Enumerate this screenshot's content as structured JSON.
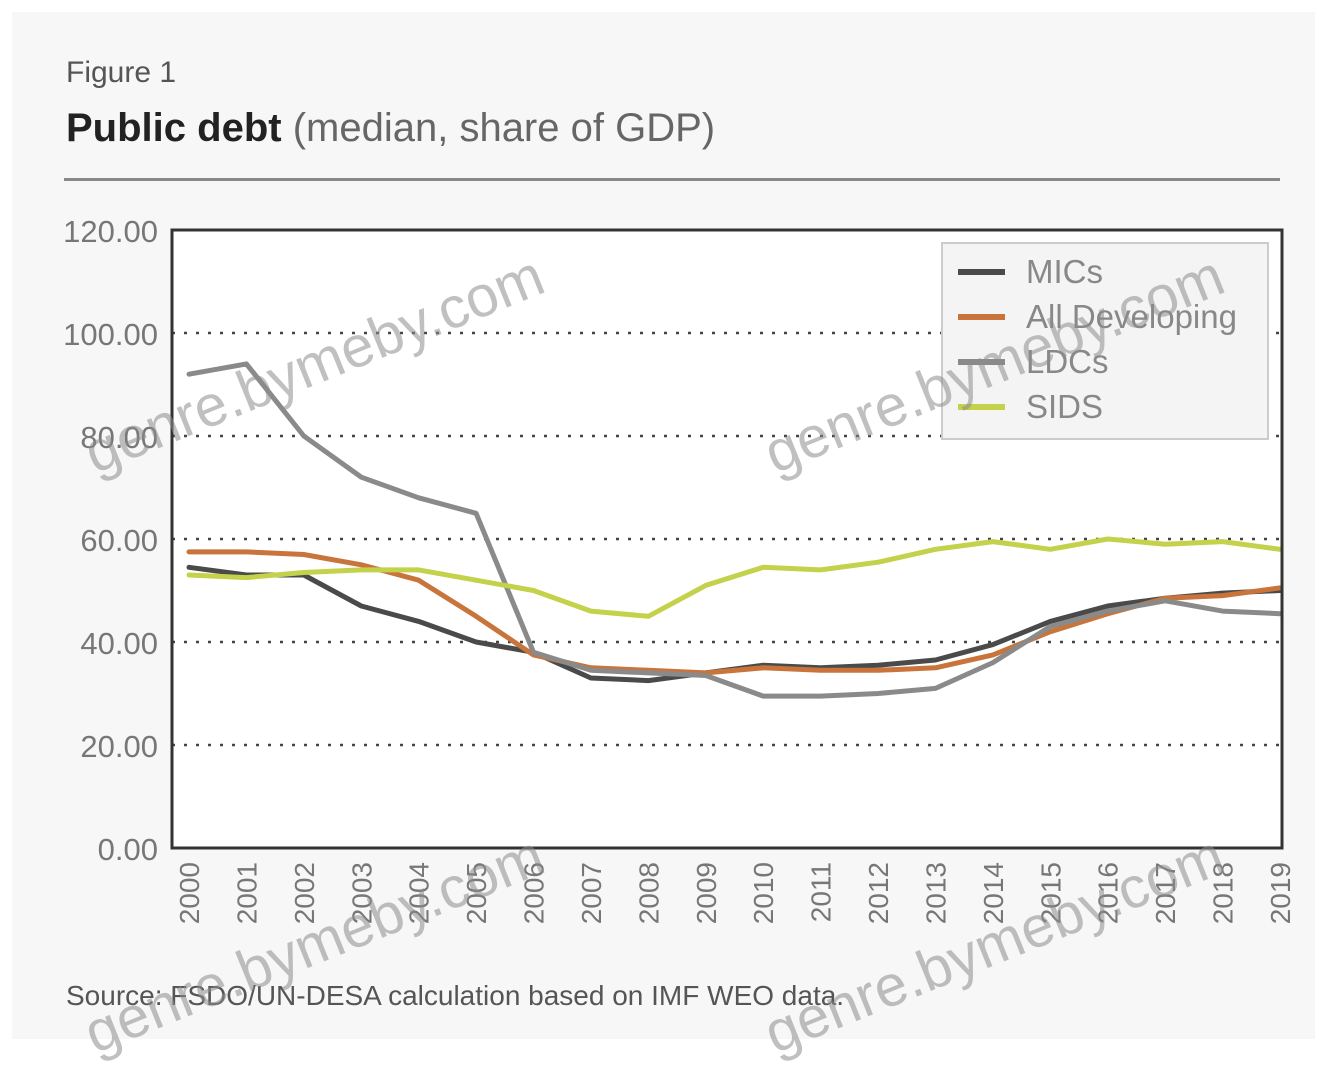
{
  "figure_label": "Figure 1",
  "title_main": "Public debt",
  "title_sub": "(median, share of GDP)",
  "source": "Source: FSDO/UN-DESA calculation based on IMF WEO data.",
  "watermark": "genre.bymeby.com",
  "chart_data": {
    "type": "line",
    "title": "Public debt (median, share of GDP)",
    "xlabel": "",
    "ylabel": "",
    "ylim": [
      0,
      120
    ],
    "yticks": [
      "0.00",
      "20.00",
      "40.00",
      "60.00",
      "80.00",
      "100.00",
      "120.00"
    ],
    "grid": "horizontal dotted",
    "legend_position": "top-right",
    "categories": [
      "2000",
      "2001",
      "2002",
      "2003",
      "2004",
      "2005",
      "2006",
      "2007",
      "2008",
      "2009",
      "2010",
      "2011",
      "2012",
      "2013",
      "2014",
      "2015",
      "2016",
      "2017",
      "2018",
      "2019"
    ],
    "series": [
      {
        "name": "MICs",
        "color": "#4a4a4a",
        "values": [
          54.5,
          53,
          53,
          47,
          44,
          40,
          38,
          33,
          32.5,
          34,
          35.5,
          35,
          35.5,
          36.5,
          39.5,
          44,
          47,
          48.5,
          49.5,
          50
        ]
      },
      {
        "name": "All Developing",
        "color": "#c8743a",
        "values": [
          57.5,
          57.5,
          57,
          55,
          52,
          45,
          37.5,
          35,
          34.5,
          34,
          35,
          34.5,
          34.5,
          35,
          37.5,
          42,
          45.5,
          48.5,
          49,
          50.5
        ]
      },
      {
        "name": "LDCs",
        "color": "#8a8a8a",
        "values": [
          92,
          94,
          80,
          72,
          68,
          65,
          38,
          34.5,
          34,
          33.5,
          29.5,
          29.5,
          30,
          31,
          36,
          43,
          46,
          48,
          46,
          45.5
        ]
      },
      {
        "name": "SIDS",
        "color": "#c4d14a",
        "values": [
          53,
          52.5,
          53.5,
          54,
          54,
          52,
          50,
          46,
          45,
          51,
          54.5,
          54,
          55.5,
          58,
          59.5,
          58,
          60,
          59,
          59.5,
          58
        ]
      }
    ]
  }
}
